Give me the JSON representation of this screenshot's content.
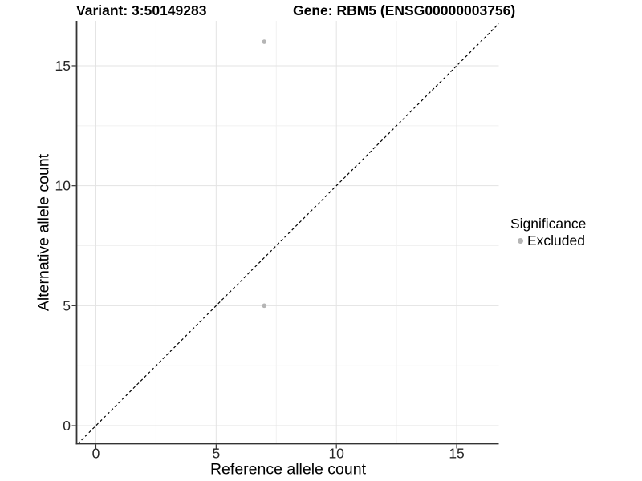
{
  "chart_data": {
    "type": "scatter",
    "title_left": "Variant: 3:50149283",
    "title_right": "Gene: RBM5 (ENSG00000003756)",
    "xlabel": "Reference allele count",
    "ylabel": "Alternative allele count",
    "xlim": [
      -0.8,
      16.75
    ],
    "ylim": [
      -0.75,
      16.87
    ],
    "x_ticks": [
      0,
      5,
      10,
      15
    ],
    "y_ticks": [
      0,
      5,
      10,
      15
    ],
    "x_minor_gridlines": [
      2.5,
      7.5,
      12.5
    ],
    "y_minor_gridlines": [
      2.5,
      7.5,
      12.5
    ],
    "grid": "on",
    "legend_position": "right",
    "identity_line": {
      "style": "dashed",
      "slope": 1,
      "intercept": 0,
      "color": "#000000"
    },
    "series": [
      {
        "name": "Excluded",
        "color": "#b5b5b5",
        "points": [
          {
            "x": 7,
            "y": 16
          },
          {
            "x": 7,
            "y": 5
          }
        ]
      }
    ],
    "legend": {
      "title": "Significance",
      "items": [
        {
          "label": "Excluded",
          "color": "#b5b5b5"
        }
      ]
    },
    "colors": {
      "background": "#ffffff",
      "grid_major": "#e3e3e3",
      "grid_minor": "#f1f1f1",
      "axis_line": "#333333",
      "tick_mark": "#333333",
      "tick_label": "#262626",
      "title_text": "#000000"
    }
  }
}
